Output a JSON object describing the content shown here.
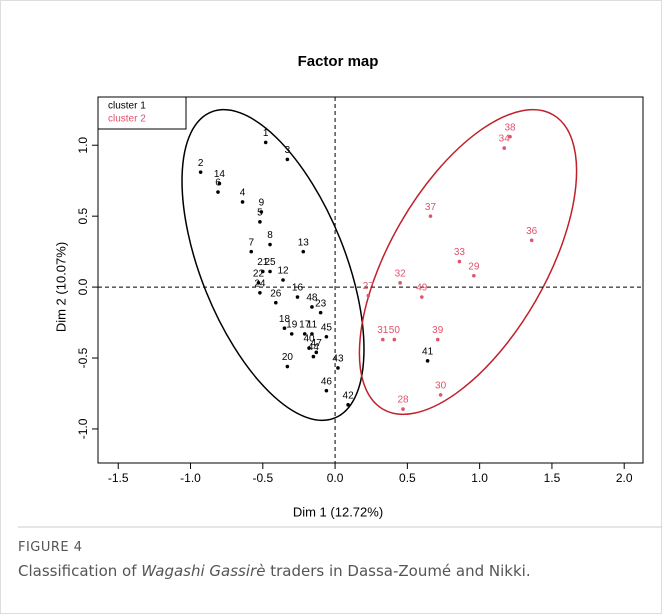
{
  "chart_data": {
    "type": "scatter",
    "title": "Factor map",
    "xlabel": "Dim 1 (12.72%)",
    "ylabel": "Dim 2 (10.07%)",
    "xlim": [
      -1.64,
      2.13
    ],
    "ylim": [
      -1.24,
      1.34
    ],
    "xticks": [
      {
        "value": -1.5,
        "label": "-1.5"
      },
      {
        "value": -1.0,
        "label": "-1.0"
      },
      {
        "value": -0.5,
        "label": "-0.5"
      },
      {
        "value": 0.0,
        "label": "0.0"
      },
      {
        "value": 0.5,
        "label": "0.5"
      },
      {
        "value": 1.0,
        "label": "1.0"
      },
      {
        "value": 1.5,
        "label": "1.5"
      },
      {
        "value": 2.0,
        "label": "2.0"
      }
    ],
    "yticks": [
      {
        "value": -1.0,
        "label": "-1.0"
      },
      {
        "value": -0.5,
        "label": "-0.5"
      },
      {
        "value": 0.0,
        "label": "0.0"
      },
      {
        "value": 0.5,
        "label": "0.5"
      },
      {
        "value": 1.0,
        "label": "1.0"
      }
    ],
    "reference_lines": {
      "x": 0,
      "y": 0
    },
    "legend": "top-left",
    "series": [
      {
        "name": "cluster 1",
        "color": "#000000",
        "labels": [
          "1",
          "3",
          "2",
          "14",
          "6",
          "4",
          "9",
          "5",
          "8",
          "7",
          "13",
          "21",
          "25",
          "12",
          "22",
          "24",
          "26",
          "16",
          "48",
          "23",
          "18",
          "19",
          "17",
          "11",
          "45",
          "40",
          "47",
          "44",
          "20",
          "43",
          "41",
          "46",
          "42"
        ],
        "x": [
          -0.48,
          -0.33,
          -0.93,
          -0.8,
          -0.81,
          -0.64,
          -0.51,
          -0.52,
          -0.45,
          -0.58,
          -0.22,
          -0.5,
          -0.45,
          -0.36,
          -0.53,
          -0.52,
          -0.41,
          -0.26,
          -0.16,
          -0.1,
          -0.35,
          -0.3,
          -0.21,
          -0.16,
          -0.06,
          -0.18,
          -0.13,
          -0.15,
          -0.33,
          0.02,
          0.64,
          -0.06,
          0.09
        ],
        "values": [
          1.02,
          0.9,
          0.81,
          0.73,
          0.67,
          0.6,
          0.53,
          0.46,
          0.3,
          0.25,
          0.25,
          0.11,
          0.11,
          0.05,
          0.03,
          -0.04,
          -0.11,
          -0.07,
          -0.14,
          -0.18,
          -0.29,
          -0.33,
          -0.33,
          -0.33,
          -0.35,
          -0.43,
          -0.46,
          -0.49,
          -0.56,
          -0.57,
          -0.52,
          -0.73,
          -0.83
        ]
      },
      {
        "name": "cluster 2",
        "color": "#df536b",
        "labels": [
          "38",
          "34",
          "37",
          "36",
          "33",
          "29",
          "32",
          "49",
          "27",
          "31",
          "50",
          "39",
          "30",
          "28"
        ],
        "x": [
          1.21,
          1.17,
          0.66,
          1.36,
          0.86,
          0.96,
          0.45,
          0.6,
          0.23,
          0.33,
          0.41,
          0.71,
          0.73,
          0.47
        ],
        "values": [
          1.06,
          0.98,
          0.5,
          0.33,
          0.18,
          0.08,
          0.03,
          -0.07,
          -0.06,
          -0.37,
          -0.37,
          -0.37,
          -0.76,
          -0.86
        ]
      }
    ]
  },
  "figure": {
    "label": "FIGURE 4",
    "caption_start": "Classification of ",
    "caption_italic": "Wagashi Gassirè",
    "caption_end": " traders in Dassa-Zoumé and Nikki."
  }
}
